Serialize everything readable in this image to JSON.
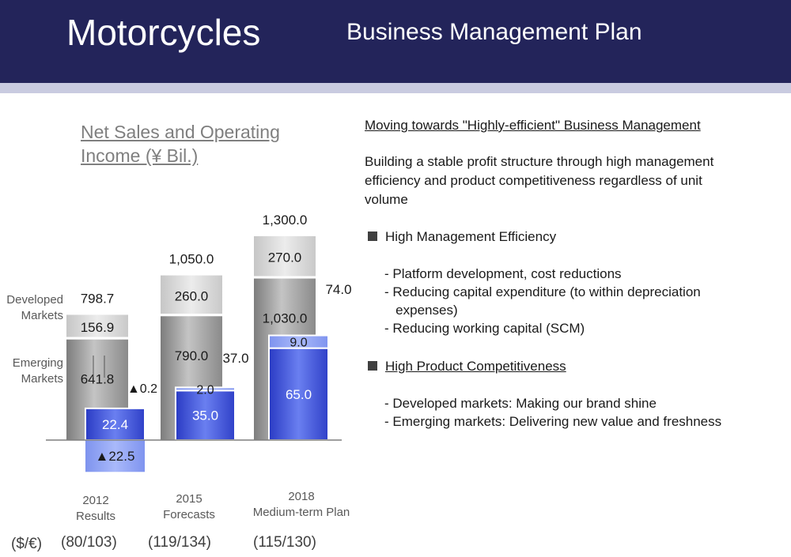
{
  "header": {
    "title": "Motorcycles",
    "subtitle": "Business Management Plan"
  },
  "chart_title": "Net Sales and Operating Income (¥ Bil.)",
  "chart_data": {
    "type": "bar",
    "title": "Net Sales and Operating Income (¥ Bil.)",
    "categories": [
      "2012 Results",
      "2015 Forecasts",
      "2018 Medium-term Plan"
    ],
    "net_sales": {
      "totals": [
        798.7,
        1050.0,
        1300.0
      ],
      "series": [
        {
          "name": "Emerging Markets",
          "values": [
            641.8,
            790.0,
            1030.0
          ]
        },
        {
          "name": "Developed Markets",
          "values": [
            156.9,
            260.0,
            270.0
          ]
        }
      ]
    },
    "operating_income": {
      "totals": [
        -0.2,
        37.0,
        74.0
      ],
      "series": [
        {
          "name": "Emerging Markets",
          "values": [
            22.4,
            35.0,
            65.0
          ]
        },
        {
          "name": "Developed Markets",
          "values": [
            -22.5,
            2.0,
            9.0
          ]
        }
      ]
    },
    "labels": {
      "totals": [
        "798.7",
        "1,050.0",
        "1,300.0"
      ],
      "emerging": [
        "641.8",
        "790.0",
        "1,030.0"
      ],
      "developed": [
        "156.9",
        "260.0",
        "270.0"
      ],
      "op_totals": [
        "▲0.2",
        "37.0",
        "74.0"
      ],
      "op_emerging": [
        "22.4",
        "35.0",
        "65.0"
      ],
      "op_developed": [
        "▲22.5",
        "2.0",
        "9.0"
      ]
    },
    "legend": {
      "developed": "Developed\nMarkets",
      "emerging": "Emerging\nMarkets"
    },
    "colors": {
      "sales_gray": "#9a9a9a",
      "sales_light": "#d6d6d6",
      "op_blue": "#3b4fd6",
      "op_light": "#8aa0f2"
    }
  },
  "x_labels": [
    {
      "line1": "2012",
      "line2": "Results"
    },
    {
      "line1": "2015",
      "line2": "Forecasts"
    },
    {
      "line1": "2018",
      "line2": "Medium-term Plan"
    }
  ],
  "fx": {
    "label": "($/€)",
    "values": [
      "(80/103)",
      "(119/134)",
      "(115/130)"
    ]
  },
  "right": {
    "heading": "Moving towards \"Highly-efficient\" Business Management",
    "intro": [
      "Building a stable profit structure through high management",
      "efficiency and product competitiveness regardless of unit",
      "volume"
    ],
    "section1": {
      "title": "High Management Efficiency",
      "items": [
        "- Platform development, cost reductions",
        "- Reducing capital expenditure (to within depreciation",
        "   expenses)",
        "- Reducing working capital (SCM)"
      ]
    },
    "section2": {
      "title": "High Product Competitiveness",
      "items": [
        "- Developed markets: Making our brand shine",
        "- Emerging markets: Delivering new value and freshness"
      ]
    }
  }
}
